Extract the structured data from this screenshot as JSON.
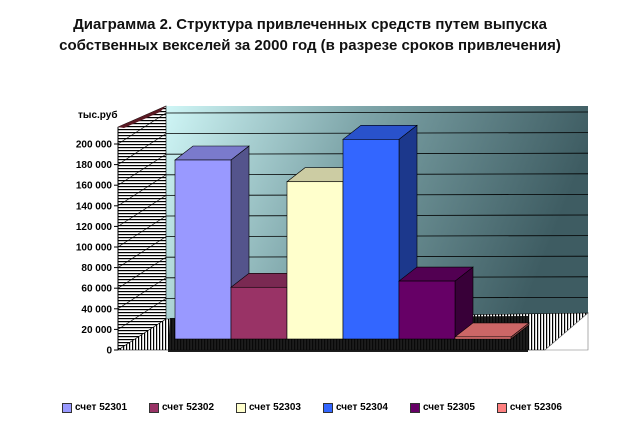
{
  "chart_data": {
    "type": "bar",
    "title": "Диаграмма 2. Структура  привлеченных средств путем выпуска собственных векселей за 2000 год (в разрезе сроков привлечения)",
    "unit_label": "тыс.руб",
    "ylim": [
      0,
      220000
    ],
    "y_ticks": [
      "0",
      "20 000",
      "40 000",
      "60 000",
      "80 000",
      "100 000",
      "120 000",
      "140 000",
      "160 000",
      "180 000",
      "200 000"
    ],
    "grid": true,
    "legend_position": "bottom",
    "series": [
      {
        "name": "счет 52301",
        "value": 173000,
        "color": "#9999ff"
      },
      {
        "name": "счет 52302",
        "value": 50000,
        "color": "#993366"
      },
      {
        "name": "счет 52303",
        "value": 152000,
        "color": "#ffffcc"
      },
      {
        "name": "счет 52304",
        "value": 193000,
        "color": "#3366ff"
      },
      {
        "name": "счет 52305",
        "value": 56000,
        "color": "#660066"
      },
      {
        "name": "счет 52306",
        "value": 2000,
        "color": "#ff8080"
      }
    ]
  }
}
